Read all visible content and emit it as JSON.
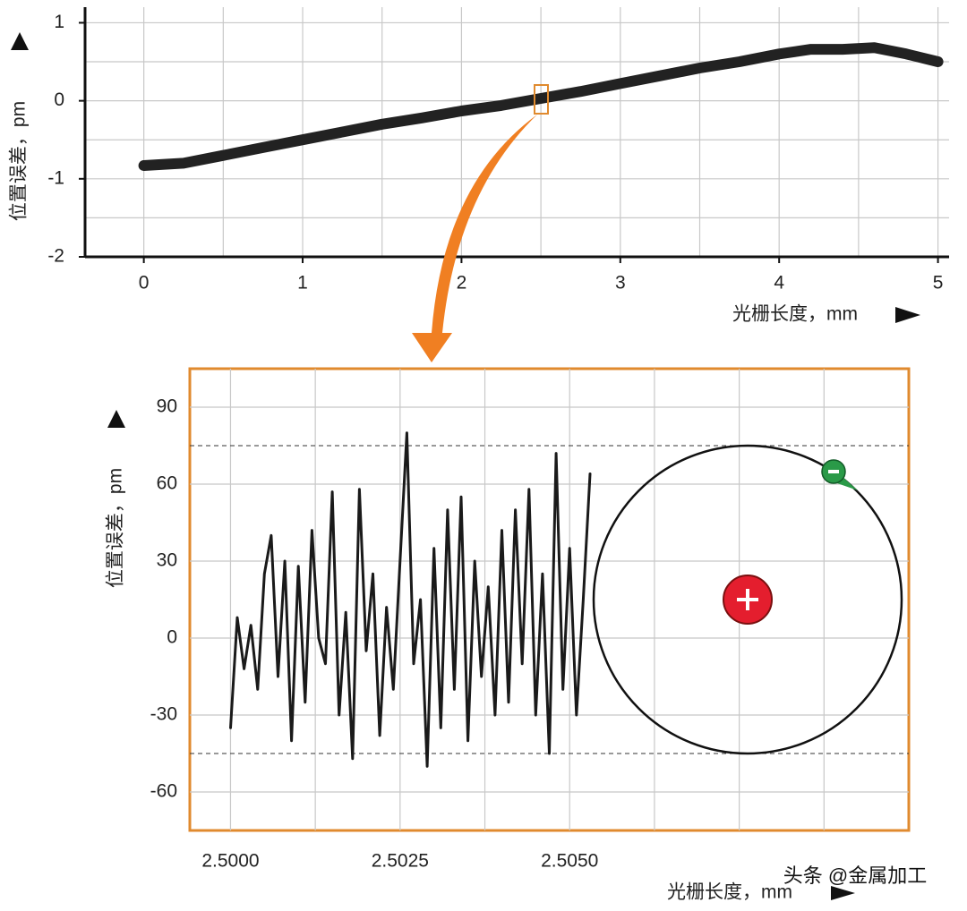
{
  "chart_data": [
    {
      "type": "line",
      "xlabel": "光栅长度，mm",
      "ylabel": "位置误差，pm",
      "x": [
        0,
        0.25,
        0.5,
        0.75,
        1,
        1.25,
        1.5,
        1.75,
        2,
        2.25,
        2.5,
        2.75,
        3,
        3.25,
        3.5,
        3.75,
        4,
        4.2,
        4.4,
        4.6,
        4.8,
        5
      ],
      "series": [
        {
          "color": "#222222",
          "values": [
            -0.83,
            -0.8,
            -0.7,
            -0.6,
            -0.5,
            -0.4,
            -0.3,
            -0.22,
            -0.13,
            -0.06,
            0.03,
            0.12,
            0.22,
            0.32,
            0.42,
            0.5,
            0.6,
            0.66,
            0.66,
            0.68,
            0.6,
            0.5
          ]
        }
      ],
      "xlim": [
        -0.37,
        5.07
      ],
      "ylim": [
        -2,
        1.2
      ],
      "xticks": [
        0,
        1,
        2,
        3,
        4,
        5
      ],
      "yticks": [
        1,
        0,
        -1,
        -2
      ],
      "xgrid": [
        0,
        0.5,
        1,
        1.5,
        2,
        2.5,
        3,
        3.5,
        4,
        4.5,
        5
      ],
      "ygrid": [
        1,
        0.5,
        0,
        -0.5,
        -1,
        -1.5,
        -2
      ]
    },
    {
      "type": "line",
      "xlabel": "光栅长度，mm",
      "ylabel": "位置误差，pm",
      "x": [
        2.5,
        2.5001,
        2.5002,
        2.5003,
        2.5004,
        2.5005,
        2.5006,
        2.5007,
        2.5008,
        2.5009,
        2.501,
        2.5011,
        2.5012,
        2.5013,
        2.5014,
        2.5015,
        2.5016,
        2.5017,
        2.5018,
        2.5019,
        2.502,
        2.5021,
        2.5022,
        2.5023,
        2.5024,
        2.5025,
        2.5026,
        2.5027,
        2.5028,
        2.5029,
        2.503,
        2.5031,
        2.5032,
        2.5033,
        2.5034,
        2.5035,
        2.5036,
        2.5037,
        2.5038,
        2.5039,
        2.504,
        2.5041,
        2.5042,
        2.5043,
        2.5044,
        2.5045,
        2.5046,
        2.5047,
        2.5048,
        2.5049,
        2.505,
        2.5051,
        2.5052,
        2.5053
      ],
      "series": [
        {
          "color": "#1a1a1a",
          "values": [
            -35,
            8,
            -12,
            5,
            -20,
            25,
            40,
            -15,
            30,
            -40,
            28,
            -25,
            42,
            0,
            -10,
            57,
            -30,
            10,
            -47,
            58,
            -5,
            25,
            -38,
            12,
            -20,
            30,
            80,
            -10,
            15,
            -50,
            35,
            -35,
            50,
            -20,
            55,
            -40,
            30,
            -15,
            20,
            -30,
            42,
            -25,
            50,
            -10,
            58,
            -30,
            25,
            -45,
            72,
            -20,
            35,
            -30,
            15,
            64
          ]
        }
      ],
      "xlim": [
        2.4994,
        2.51
      ],
      "ylim": [
        -75,
        105
      ],
      "xticks": [
        {
          "value": 2.5,
          "label": "2.5000"
        },
        2.5025,
        {
          "value": 2.505,
          "label": "2.5050"
        }
      ],
      "yticks": [
        90,
        60,
        30,
        0,
        -30,
        -60
      ],
      "xgrid": [
        2.5,
        2.50125,
        2.5025,
        2.50375,
        2.505,
        2.50625,
        2.5075,
        2.50875
      ],
      "ygrid": [
        90,
        60,
        30,
        0,
        -30,
        -60
      ],
      "reference_lines": [
        75,
        -45
      ]
    }
  ],
  "watermark": "头条 @金属加工"
}
